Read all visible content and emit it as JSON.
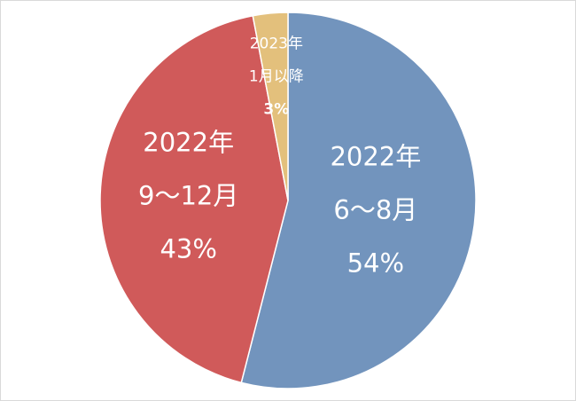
{
  "chart_data": {
    "type": "pie",
    "categories": [
      [
        "2022年",
        "6～8月"
      ],
      [
        "2022年",
        "9～12月"
      ],
      [
        "2023年",
        "1月以降"
      ]
    ],
    "values": [
      54,
      43,
      3
    ],
    "value_labels": [
      "54%",
      "43%",
      "3%"
    ],
    "colors": [
      "#7294bd",
      "#d05a5a",
      "#e3c07c"
    ]
  }
}
